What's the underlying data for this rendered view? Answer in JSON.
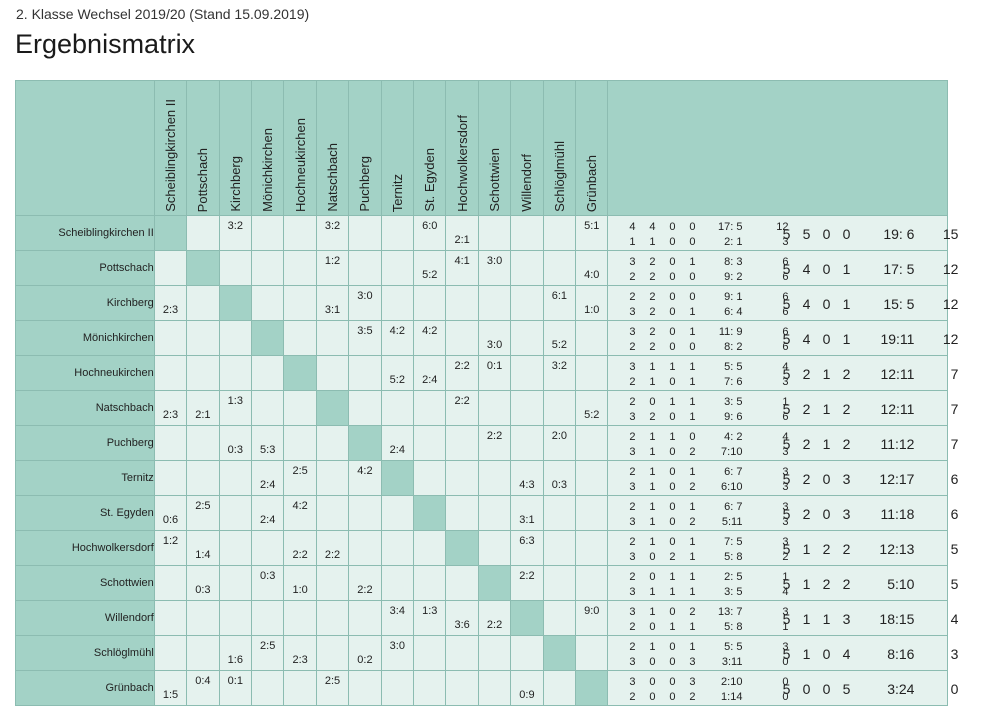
{
  "header": {
    "subtitle": "2. Klasse Wechsel 2019/20 (Stand 15.09.2019)",
    "title": "Ergebnismatrix"
  },
  "colors": {
    "header_bg": "#a3d2c6",
    "cell_bg": "#e5f2ee",
    "border": "#8cbcb1"
  },
  "teams": [
    "Scheiblingkirchen II",
    "Pottschach",
    "Kirchberg",
    "Mönichkirchen",
    "Hochneukirchen",
    "Natschbach",
    "Puchberg",
    "Ternitz",
    "St. Egyden",
    "Hochwolkersdorf",
    "Schottwien",
    "Willendorf",
    "Schlöglmühl",
    "Grünbach"
  ],
  "rows": [
    {
      "cells": [
        {},
        {},
        {
          "h": "3:2"
        },
        {},
        {},
        {
          "h": "3:2"
        },
        {},
        {},
        {
          "h": "6:0"
        },
        {
          "a": "2:1"
        },
        {},
        {},
        {},
        {
          "h": "5:1"
        }
      ],
      "home": [
        "4",
        "4",
        "0",
        "0",
        "17: 5",
        "12"
      ],
      "away": [
        "1",
        "1",
        "0",
        "0",
        "2: 1",
        "3"
      ],
      "total": [
        "5",
        "5",
        "0",
        "0",
        "19: 6",
        "15"
      ]
    },
    {
      "cells": [
        {},
        {},
        {},
        {},
        {},
        {
          "h": "1:2"
        },
        {},
        {},
        {
          "a": "5:2"
        },
        {
          "h": "4:1"
        },
        {
          "h": "3:0"
        },
        {},
        {},
        {
          "a": "4:0"
        }
      ],
      "home": [
        "3",
        "2",
        "0",
        "1",
        "8: 3",
        "6"
      ],
      "away": [
        "2",
        "2",
        "0",
        "0",
        "9: 2",
        "6"
      ],
      "total": [
        "5",
        "4",
        "0",
        "1",
        "17: 5",
        "12"
      ]
    },
    {
      "cells": [
        {
          "a": "2:3"
        },
        {},
        {},
        {},
        {},
        {
          "a": "3:1"
        },
        {
          "h": "3:0"
        },
        {},
        {},
        {},
        {},
        {},
        {
          "h": "6:1"
        },
        {
          "a": "1:0"
        }
      ],
      "home": [
        "2",
        "2",
        "0",
        "0",
        "9: 1",
        "6"
      ],
      "away": [
        "3",
        "2",
        "0",
        "1",
        "6: 4",
        "6"
      ],
      "total": [
        "5",
        "4",
        "0",
        "1",
        "15: 5",
        "12"
      ]
    },
    {
      "cells": [
        {},
        {},
        {},
        {},
        {},
        {},
        {
          "h": "3:5"
        },
        {
          "h": "4:2"
        },
        {
          "h": "4:2"
        },
        {},
        {
          "a": "3:0"
        },
        {},
        {
          "a": "5:2"
        },
        {}
      ],
      "home": [
        "3",
        "2",
        "0",
        "1",
        "11: 9",
        "6"
      ],
      "away": [
        "2",
        "2",
        "0",
        "0",
        "8: 2",
        "6"
      ],
      "total": [
        "5",
        "4",
        "0",
        "1",
        "19:11",
        "12"
      ]
    },
    {
      "cells": [
        {},
        {},
        {},
        {},
        {},
        {},
        {},
        {
          "a": "5:2"
        },
        {
          "a": "2:4"
        },
        {
          "h": "2:2"
        },
        {
          "h": "0:1"
        },
        {},
        {
          "h": "3:2"
        },
        {}
      ],
      "home": [
        "3",
        "1",
        "1",
        "1",
        "5: 5",
        "4"
      ],
      "away": [
        "2",
        "1",
        "0",
        "1",
        "7: 6",
        "3"
      ],
      "total": [
        "5",
        "2",
        "1",
        "2",
        "12:11",
        "7"
      ]
    },
    {
      "cells": [
        {
          "a": "2:3"
        },
        {
          "a": "2:1"
        },
        {
          "h": "1:3"
        },
        {},
        {},
        {},
        {},
        {},
        {},
        {
          "h": "2:2"
        },
        {},
        {},
        {},
        {
          "a": "5:2"
        }
      ],
      "home": [
        "2",
        "0",
        "1",
        "1",
        "3: 5",
        "1"
      ],
      "away": [
        "3",
        "2",
        "0",
        "1",
        "9: 6",
        "6"
      ],
      "total": [
        "5",
        "2",
        "1",
        "2",
        "12:11",
        "7"
      ]
    },
    {
      "cells": [
        {},
        {},
        {
          "a": "0:3"
        },
        {
          "a": "5:3"
        },
        {},
        {},
        {},
        {
          "a": "2:4"
        },
        {},
        {},
        {
          "h": "2:2"
        },
        {},
        {
          "h": "2:0"
        },
        {}
      ],
      "home": [
        "2",
        "1",
        "1",
        "0",
        "4: 2",
        "4"
      ],
      "away": [
        "3",
        "1",
        "0",
        "2",
        "7:10",
        "3"
      ],
      "total": [
        "5",
        "2",
        "1",
        "2",
        "11:12",
        "7"
      ]
    },
    {
      "cells": [
        {},
        {},
        {},
        {
          "a": "2:4"
        },
        {
          "h": "2:5"
        },
        {},
        {
          "h": "4:2"
        },
        {},
        {},
        {},
        {},
        {
          "a": "4:3"
        },
        {
          "a": "0:3"
        },
        {}
      ],
      "home": [
        "2",
        "1",
        "0",
        "1",
        "6: 7",
        "3"
      ],
      "away": [
        "3",
        "1",
        "0",
        "2",
        "6:10",
        "3"
      ],
      "total": [
        "5",
        "2",
        "0",
        "3",
        "12:17",
        "6"
      ]
    },
    {
      "cells": [
        {
          "a": "0:6"
        },
        {
          "h": "2:5"
        },
        {},
        {
          "a": "2:4"
        },
        {
          "h": "4:2"
        },
        {},
        {},
        {},
        {},
        {},
        {},
        {
          "a": "3:1"
        },
        {},
        {}
      ],
      "home": [
        "2",
        "1",
        "0",
        "1",
        "6: 7",
        "3"
      ],
      "away": [
        "3",
        "1",
        "0",
        "2",
        "5:11",
        "3"
      ],
      "total": [
        "5",
        "2",
        "0",
        "3",
        "11:18",
        "6"
      ]
    },
    {
      "cells": [
        {
          "h": "1:2"
        },
        {
          "a": "1:4"
        },
        {},
        {},
        {
          "a": "2:2"
        },
        {
          "a": "2:2"
        },
        {},
        {},
        {},
        {},
        {},
        {
          "h": "6:3"
        },
        {},
        {}
      ],
      "home": [
        "2",
        "1",
        "0",
        "1",
        "7: 5",
        "3"
      ],
      "away": [
        "3",
        "0",
        "2",
        "1",
        "5: 8",
        "2"
      ],
      "total": [
        "5",
        "1",
        "2",
        "2",
        "12:13",
        "5"
      ]
    },
    {
      "cells": [
        {},
        {
          "a": "0:3"
        },
        {},
        {
          "h": "0:3"
        },
        {
          "a": "1:0"
        },
        {},
        {
          "a": "2:2"
        },
        {},
        {},
        {},
        {},
        {
          "h": "2:2"
        },
        {},
        {}
      ],
      "home": [
        "2",
        "0",
        "1",
        "1",
        "2: 5",
        "1"
      ],
      "away": [
        "3",
        "1",
        "1",
        "1",
        "3: 5",
        "4"
      ],
      "total": [
        "5",
        "1",
        "2",
        "2",
        "5:10",
        "5"
      ]
    },
    {
      "cells": [
        {},
        {},
        {},
        {},
        {},
        {},
        {},
        {
          "h": "3:4"
        },
        {
          "h": "1:3"
        },
        {
          "a": "3:6"
        },
        {
          "a": "2:2"
        },
        {},
        {},
        {
          "h": "9:0"
        }
      ],
      "home": [
        "3",
        "1",
        "0",
        "2",
        "13: 7",
        "3"
      ],
      "away": [
        "2",
        "0",
        "1",
        "1",
        "5: 8",
        "1"
      ],
      "total": [
        "5",
        "1",
        "1",
        "3",
        "18:15",
        "4"
      ]
    },
    {
      "cells": [
        {},
        {},
        {
          "a": "1:6"
        },
        {
          "h": "2:5"
        },
        {
          "a": "2:3"
        },
        {},
        {
          "a": "0:2"
        },
        {
          "h": "3:0"
        },
        {},
        {},
        {},
        {},
        {},
        {}
      ],
      "home": [
        "2",
        "1",
        "0",
        "1",
        "5: 5",
        "3"
      ],
      "away": [
        "3",
        "0",
        "0",
        "3",
        "3:11",
        "0"
      ],
      "total": [
        "5",
        "1",
        "0",
        "4",
        "8:16",
        "3"
      ]
    },
    {
      "cells": [
        {
          "a": "1:5"
        },
        {
          "h": "0:4"
        },
        {
          "h": "0:1"
        },
        {},
        {},
        {
          "h": "2:5"
        },
        {},
        {},
        {},
        {},
        {},
        {
          "a": "0:9"
        },
        {},
        {}
      ],
      "home": [
        "3",
        "0",
        "0",
        "3",
        "2:10",
        "0"
      ],
      "away": [
        "2",
        "0",
        "0",
        "2",
        "1:14",
        "0"
      ],
      "total": [
        "5",
        "0",
        "0",
        "5",
        "3:24",
        "0"
      ]
    }
  ]
}
